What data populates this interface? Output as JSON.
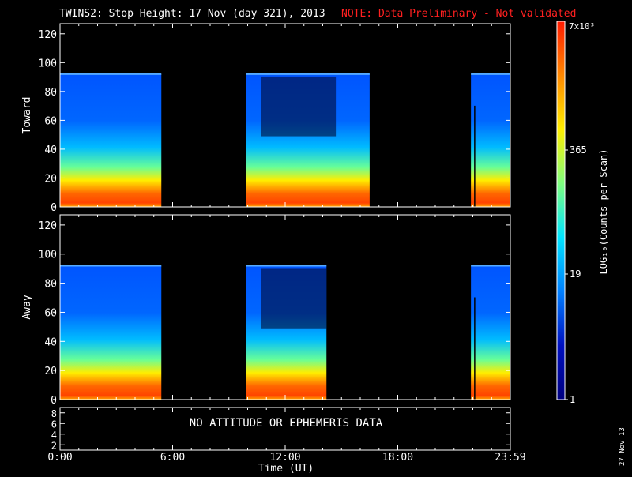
{
  "header": {
    "title": "TWINS2: Stop Height: 17 Nov (day 321), 2013",
    "note": "NOTE: Data Preliminary - Not validated",
    "note_color": "#ff2020"
  },
  "footer": {
    "date_stamp": "27 Nov 13"
  },
  "chart_data": [
    {
      "type": "heatmap",
      "name": "toward-panel",
      "ylabel": "Toward",
      "xlim": [
        0,
        24
      ],
      "ylim": [
        0,
        127
      ],
      "yticks": [
        "0",
        "20",
        "40",
        "60",
        "80",
        "100",
        "120"
      ],
      "data_top": 92,
      "data_intervals_hours": [
        [
          0,
          5.4
        ],
        [
          9.9,
          16.5
        ],
        [
          21.9,
          24
        ]
      ],
      "dense_intervals_hours": [
        [
          10.7,
          14.7
        ]
      ]
    },
    {
      "type": "heatmap",
      "name": "away-panel",
      "ylabel": "Away",
      "xlim": [
        0,
        24
      ],
      "ylim": [
        0,
        127
      ],
      "yticks": [
        "0",
        "20",
        "40",
        "60",
        "80",
        "100",
        "120"
      ],
      "data_top": 92,
      "data_intervals_hours": [
        [
          0,
          5.4
        ],
        [
          9.9,
          14.2
        ],
        [
          21.9,
          24
        ]
      ],
      "dense_intervals_hours": [
        [
          10.7,
          14.2
        ]
      ]
    },
    {
      "type": "line",
      "name": "attitude-panel",
      "ylim": [
        1,
        9
      ],
      "yticks": [
        "2",
        "4",
        "6",
        "8"
      ],
      "message": "NO ATTITUDE OR EPHEMERIS DATA"
    }
  ],
  "x_axis": {
    "label": "Time (UT)",
    "ticks": [
      {
        "label": "0:00",
        "hour": 0
      },
      {
        "label": "6:00",
        "hour": 6
      },
      {
        "label": "12:00",
        "hour": 12
      },
      {
        "label": "18:00",
        "hour": 18
      },
      {
        "label": "23:59",
        "hour": 24
      }
    ]
  },
  "colorbar": {
    "label": "LOG₁₀(Counts per Scan)",
    "top_label": "7x10³",
    "ticks": [
      "365",
      "19",
      "1"
    ],
    "stops": [
      "#ff1a00",
      "#ff8800",
      "#ffee00",
      "#7fff7f",
      "#00e5ff",
      "#0080ff",
      "#0010c0",
      "#000080"
    ]
  }
}
